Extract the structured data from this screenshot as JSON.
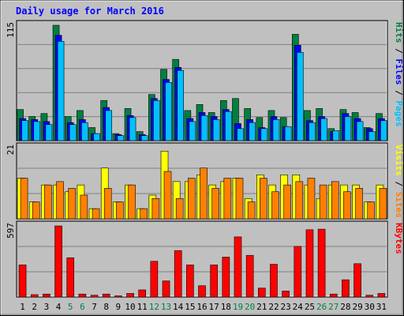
{
  "title": "Daily usage for March 2016",
  "colors": {
    "background": "#c0c0c0",
    "plot": "#c0c0c0",
    "hits": "#008040",
    "files": "#0000ff",
    "pages": "#00c0ff",
    "visits": "#ffff00",
    "sites": "#ff8000",
    "kbytes": "#ff0000",
    "weekend_day": "#008040",
    "weekday": "#000000"
  },
  "chart_data": [
    {
      "type": "bar",
      "panel": "hits-files-pages",
      "ymax_label": "115",
      "ylim": [
        0,
        115
      ],
      "side_label": [
        {
          "text": "Pages",
          "color": "#00c0ff"
        },
        {
          "text": " / ",
          "color": "#000000"
        },
        {
          "text": "Files",
          "color": "#0000ff"
        },
        {
          "text": " / ",
          "color": "#000000"
        },
        {
          "text": "Hits",
          "color": "#008040"
        }
      ],
      "categories": [
        "1",
        "2",
        "3",
        "4",
        "5",
        "6",
        "7",
        "8",
        "9",
        "10",
        "11",
        "12",
        "13",
        "14",
        "15",
        "16",
        "17",
        "18",
        "19",
        "20",
        "21",
        "22",
        "23",
        "24",
        "25",
        "26",
        "27",
        "28",
        "29",
        "30",
        "31"
      ],
      "series": [
        {
          "name": "Hits",
          "color": "#008040",
          "values": [
            31,
            24,
            27,
            115,
            24,
            30,
            13,
            40,
            7,
            32,
            9,
            46,
            71,
            81,
            30,
            36,
            28,
            40,
            42,
            32,
            23,
            30,
            23,
            106,
            30,
            32,
            12,
            31,
            28,
            13,
            27
          ]
        },
        {
          "name": "Files",
          "color": "#0000ff",
          "values": [
            22,
            21,
            19,
            105,
            18,
            21,
            7,
            33,
            6,
            25,
            6,
            42,
            61,
            73,
            22,
            28,
            24,
            31,
            17,
            21,
            13,
            24,
            14,
            95,
            20,
            24,
            9,
            27,
            22,
            12,
            22
          ]
        },
        {
          "name": "Pages",
          "color": "#00c0ff",
          "values": [
            20,
            19,
            16,
            99,
            16,
            18,
            7,
            30,
            5,
            23,
            5,
            40,
            58,
            70,
            19,
            25,
            21,
            29,
            12,
            18,
            12,
            21,
            14,
            88,
            18,
            22,
            10,
            24,
            19,
            9,
            20
          ]
        }
      ]
    },
    {
      "type": "bar",
      "panel": "visits-sites",
      "ymax_label": "21",
      "ylim": [
        0,
        21
      ],
      "side_label": [
        {
          "text": "Sites",
          "color": "#ff8000"
        },
        {
          "text": " / ",
          "color": "#000000"
        },
        {
          "text": "Visits",
          "color": "#ffff00"
        }
      ],
      "categories": [
        "1",
        "2",
        "3",
        "4",
        "5",
        "6",
        "7",
        "8",
        "9",
        "10",
        "11",
        "12",
        "13",
        "14",
        "15",
        "16",
        "17",
        "18",
        "19",
        "20",
        "21",
        "22",
        "23",
        "24",
        "25",
        "26",
        "27",
        "28",
        "29",
        "30",
        "31"
      ],
      "series": [
        {
          "name": "Visits",
          "color": "#ffff00",
          "values": [
            12,
            5,
            10,
            10,
            8,
            10,
            3,
            15,
            5,
            10,
            3,
            7,
            20,
            11,
            11,
            13,
            10,
            11,
            12,
            6,
            13,
            10,
            13,
            13,
            10,
            6,
            10,
            10,
            10,
            5,
            10
          ]
        },
        {
          "name": "Sites",
          "color": "#ff8000",
          "values": [
            12,
            5,
            10,
            11,
            9,
            7,
            3,
            9,
            5,
            10,
            3,
            6,
            14,
            6,
            12,
            15,
            9,
            12,
            12,
            5,
            12,
            8,
            10,
            11,
            12,
            10,
            11,
            8,
            9,
            5,
            9
          ]
        }
      ]
    },
    {
      "type": "bar",
      "panel": "kbytes",
      "ymax_label": "597",
      "ylim": [
        0,
        597
      ],
      "side_label": [
        {
          "text": "KBytes",
          "color": "#ff0000"
        }
      ],
      "categories": [
        "1",
        "2",
        "3",
        "4",
        "5",
        "6",
        "7",
        "8",
        "9",
        "10",
        "11",
        "12",
        "13",
        "14",
        "15",
        "16",
        "17",
        "18",
        "19",
        "20",
        "21",
        "22",
        "23",
        "24",
        "25",
        "26",
        "27",
        "28",
        "29",
        "30",
        "31"
      ],
      "series": [
        {
          "name": "KBytes",
          "color": "#ff0000",
          "values": [
            270,
            20,
            25,
            597,
            330,
            25,
            15,
            25,
            10,
            30,
            60,
            300,
            135,
            390,
            270,
            95,
            270,
            335,
            505,
            350,
            75,
            275,
            50,
            425,
            565,
            570,
            25,
            145,
            280,
            15,
            30
          ]
        }
      ]
    }
  ],
  "x_axis": {
    "labels": [
      "1",
      "2",
      "3",
      "4",
      "5",
      "6",
      "7",
      "8",
      "9",
      "10",
      "11",
      "12",
      "13",
      "14",
      "15",
      "16",
      "17",
      "18",
      "19",
      "20",
      "21",
      "22",
      "23",
      "24",
      "25",
      "26",
      "27",
      "28",
      "29",
      "30",
      "31"
    ],
    "weekend": [
      false,
      false,
      false,
      false,
      true,
      true,
      false,
      false,
      false,
      false,
      false,
      true,
      true,
      false,
      false,
      false,
      false,
      false,
      true,
      true,
      false,
      false,
      false,
      false,
      false,
      true,
      true,
      false,
      false,
      false,
      false
    ]
  }
}
